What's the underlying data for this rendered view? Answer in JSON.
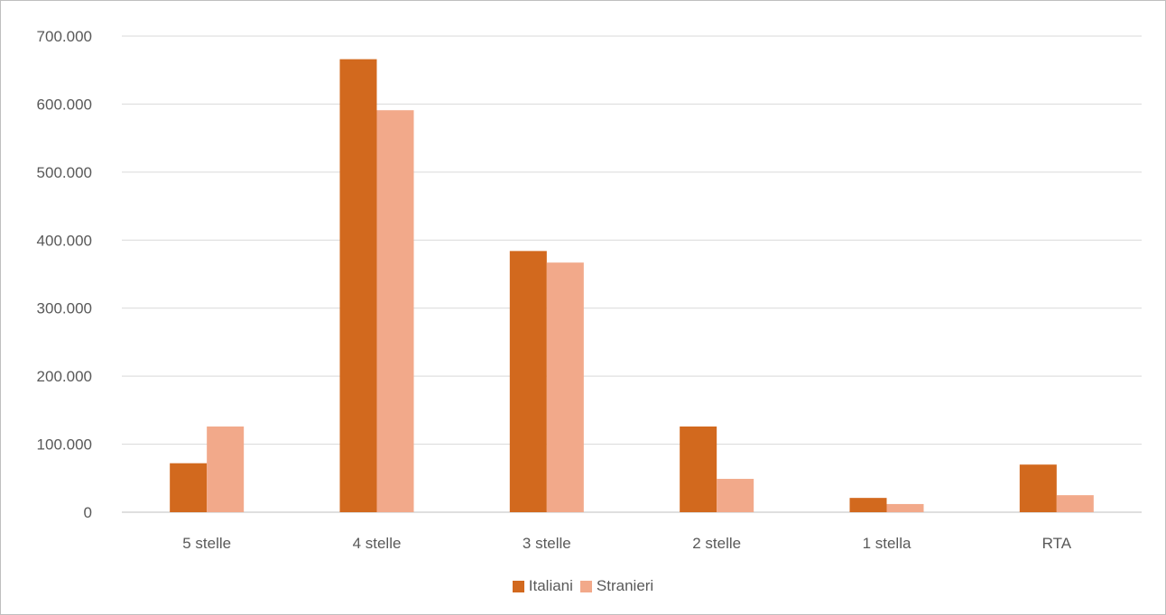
{
  "chart_data": {
    "type": "bar",
    "title": "",
    "categories": [
      "5 stelle",
      "4 stelle",
      "3 stelle",
      "2 stelle",
      "1 stella",
      "RTA"
    ],
    "series": [
      {
        "name": "Italiani",
        "color": "#d2691e",
        "values": [
          72000,
          666000,
          384000,
          126000,
          21000,
          70000
        ]
      },
      {
        "name": "Stranieri",
        "color": "#f2a98a",
        "values": [
          126000,
          591000,
          367000,
          49000,
          12000,
          25000
        ]
      }
    ],
    "yticks": [
      "0",
      "100.000",
      "200.000",
      "300.000",
      "400.000",
      "500.000",
      "600.000",
      "700.000"
    ],
    "ylim": [
      0,
      700000
    ],
    "grid": true,
    "legend_position": "bottom"
  }
}
